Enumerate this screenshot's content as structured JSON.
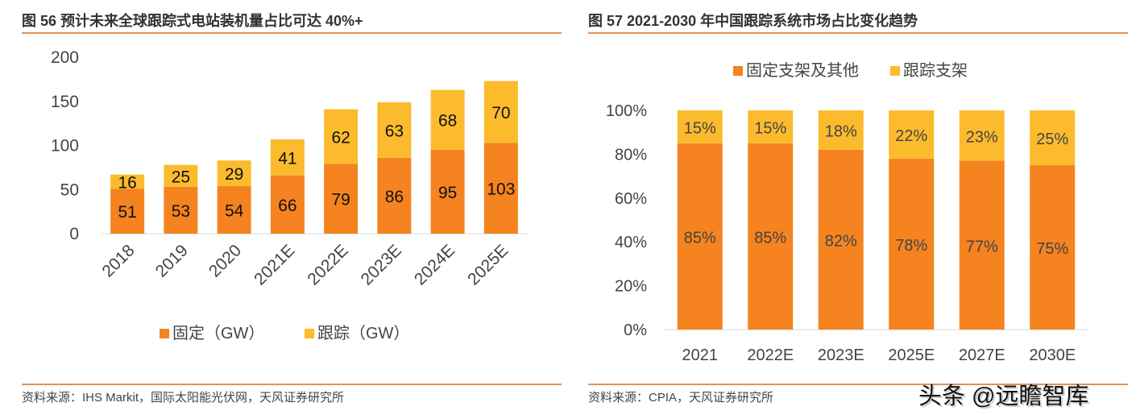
{
  "colors": {
    "fixed": "#F5831F",
    "tracking": "#FBBB2D",
    "rule": "#E0935A"
  },
  "left": {
    "title": "图 56 预计未来全球跟踪式电站装机量占比可达 40%+",
    "source": "资料来源：IHS Markit，国际太阳能光伏网，天风证券研究所"
  },
  "right": {
    "title": "图 57 2021-2030 年中国跟踪系统市场占比变化趋势",
    "source": "资料来源：CPIA，天风证券研究所"
  },
  "watermark": "头条 @远瞻智库",
  "chart_data": [
    {
      "type": "bar",
      "stacked": true,
      "categories": [
        "2018",
        "2019",
        "2020",
        "2021E",
        "2022E",
        "2023E",
        "2024E",
        "2025E"
      ],
      "series": [
        {
          "name": "固定（GW）",
          "values": [
            51,
            53,
            54,
            66,
            79,
            86,
            95,
            103
          ]
        },
        {
          "name": "跟踪（GW）",
          "values": [
            16,
            25,
            29,
            41,
            62,
            63,
            68,
            70
          ]
        }
      ],
      "yticks": [
        "0",
        "50",
        "100",
        "150",
        "200"
      ],
      "ylim": [
        0,
        200
      ],
      "legend": "bottom",
      "grid": false
    },
    {
      "type": "bar",
      "stacked": true,
      "categories": [
        "2021",
        "2022E",
        "2023E",
        "2025E",
        "2027E",
        "2030E"
      ],
      "series": [
        {
          "name": "固定支架及其他",
          "values": [
            85,
            85,
            82,
            78,
            77,
            75
          ]
        },
        {
          "name": "跟踪支架",
          "values": [
            15,
            15,
            18,
            22,
            23,
            25
          ]
        }
      ],
      "yticks": [
        "0%",
        "20%",
        "40%",
        "60%",
        "80%",
        "100%"
      ],
      "ylim": [
        0,
        100
      ],
      "legend": "top",
      "grid": false
    }
  ]
}
